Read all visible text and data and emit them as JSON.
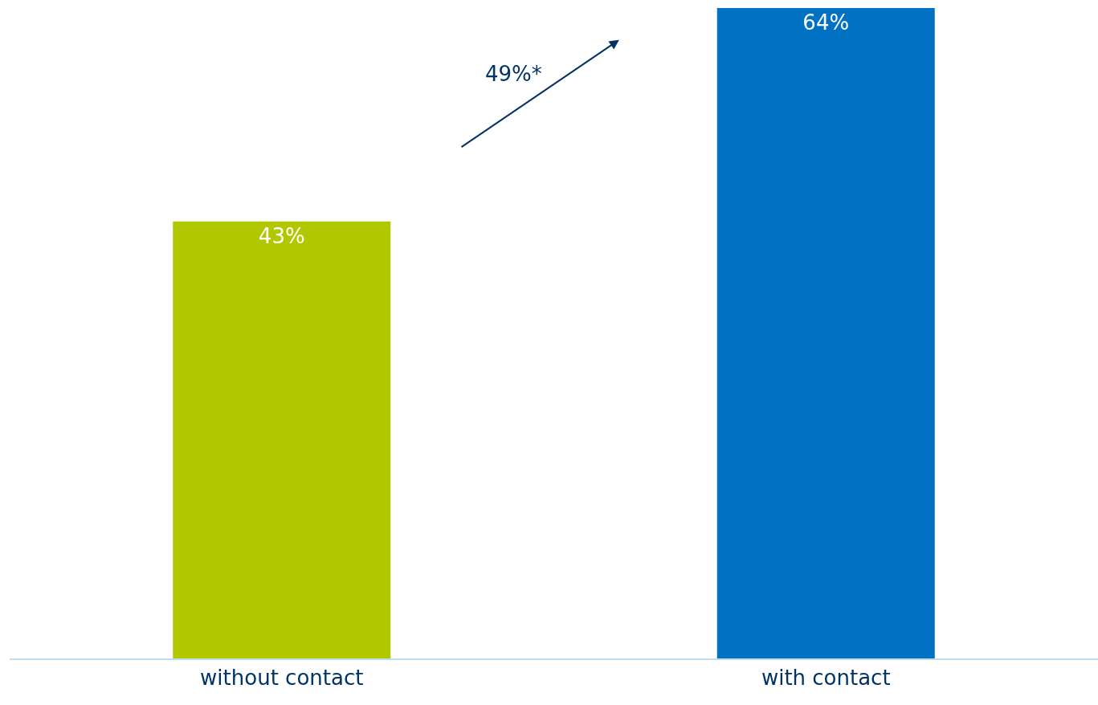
{
  "chart_data": {
    "type": "bar",
    "categories": [
      "without contact",
      "with contact"
    ],
    "values": [
      43,
      64
    ],
    "value_labels": [
      "43%",
      "64%"
    ],
    "colors": [
      "#b1c800",
      "#0071c3"
    ],
    "annotations": [
      "49%*"
    ]
  }
}
